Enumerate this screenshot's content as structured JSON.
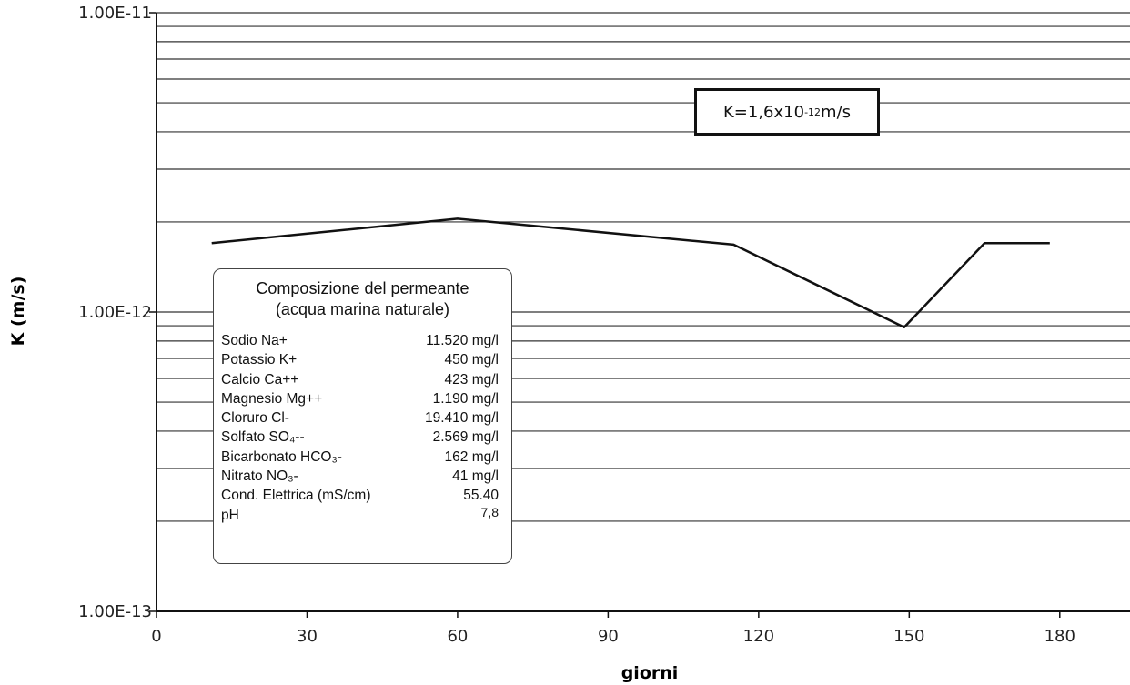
{
  "chart_data": {
    "type": "line",
    "xlabel": "giorni",
    "ylabel": "K (m/s)",
    "y_scale": "log",
    "ylim": [
      1e-13,
      1e-11
    ],
    "xlim": [
      0,
      194
    ],
    "x_ticks": [
      0,
      30,
      60,
      90,
      120,
      150,
      180
    ],
    "y_tick_labels": [
      "1.00E-11",
      "1.00E-12",
      "1.00E-13"
    ],
    "y_tick_values": [
      1e-11,
      1e-12,
      1e-13
    ],
    "grid": true,
    "series": [
      {
        "x": [
          11,
          60,
          115,
          149,
          165,
          178
        ],
        "y": [
          1.7e-12,
          2.05e-12,
          1.68e-12,
          8.9e-13,
          1.7e-12,
          1.7e-12
        ],
        "color": "#111111"
      }
    ],
    "annotation": {
      "prefix": "K=1,6x10",
      "exponent": "-12",
      "unit": "m/s"
    },
    "composition_box": {
      "title_line1": "Composizione del permeante",
      "title_line2": "(acqua marina naturale)",
      "rows": [
        {
          "label": "Sodio Na+",
          "value": "11.520 mg/l"
        },
        {
          "label": "Potassio K+",
          "value": "450 mg/l"
        },
        {
          "label": "Calcio Ca++",
          "value": "423 mg/l"
        },
        {
          "label": "Magnesio Mg++",
          "value": "1.190 mg/l"
        },
        {
          "label": "Cloruro Cl-",
          "value": "19.410 mg/l"
        },
        {
          "label": "Solfato SO₄--",
          "value": "2.569 mg/l"
        },
        {
          "label": "Bicarbonato HCO₃-",
          "value": "162 mg/l"
        },
        {
          "label": "Nitrato NO₃-",
          "value": "41 mg/l"
        },
        {
          "label": "Cond. Elettrica (mS/cm)",
          "value": "55.40"
        },
        {
          "label": "pH",
          "value": "7,8"
        }
      ]
    }
  }
}
